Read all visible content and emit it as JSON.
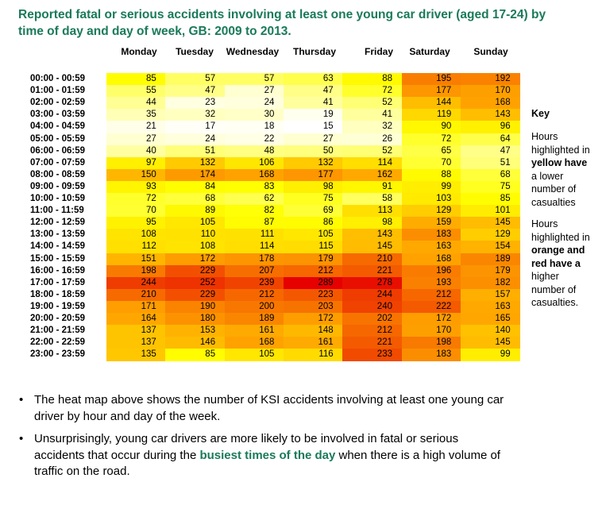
{
  "title": "Reported fatal or serious accidents involving at least one young car driver (aged 17-24) by time of day and day of week, GB: 2009 to 2013.",
  "chart_data": {
    "type": "heatmap",
    "title": "Reported fatal or serious accidents involving at least one young car driver (aged 17-24) by time of day and day of week, GB: 2009 to 2013.",
    "columns": [
      "Monday",
      "Tuesday",
      "Wednesday",
      "Thursday",
      "Friday",
      "Saturday",
      "Sunday"
    ],
    "rows": [
      "00:00 - 00:59",
      "01:00 - 01:59",
      "02:00 - 02:59",
      "03:00 - 03:59",
      "04:00 - 04:59",
      "05:00 - 05:59",
      "06:00 - 06:59",
      "07:00 - 07:59",
      "08:00 - 08:59",
      "09:00 - 09:59",
      "10:00 - 10:59",
      "11:00 - 11:59",
      "12:00 - 12:59",
      "13:00 - 13:59",
      "14:00 - 14:59",
      "15:00 - 15:59",
      "16:00 - 16:59",
      "17:00 - 17:59",
      "18:00 - 18:59",
      "19:00 - 19:59",
      "20:00 - 20:59",
      "21:00 - 21:59",
      "22:00 - 22:59",
      "23:00 - 23:59"
    ],
    "values": [
      [
        85,
        57,
        57,
        63,
        88,
        195,
        192
      ],
      [
        55,
        47,
        27,
        47,
        72,
        177,
        170
      ],
      [
        44,
        23,
        24,
        41,
        52,
        144,
        168
      ],
      [
        35,
        32,
        30,
        19,
        41,
        119,
        143
      ],
      [
        21,
        17,
        18,
        15,
        32,
        90,
        96
      ],
      [
        27,
        24,
        22,
        27,
        26,
        72,
        64
      ],
      [
        40,
        51,
        48,
        50,
        52,
        65,
        47
      ],
      [
        97,
        132,
        106,
        132,
        114,
        70,
        51
      ],
      [
        150,
        174,
        168,
        177,
        162,
        88,
        68
      ],
      [
        93,
        84,
        83,
        98,
        91,
        99,
        75
      ],
      [
        72,
        68,
        62,
        75,
        58,
        103,
        85
      ],
      [
        70,
        89,
        82,
        69,
        113,
        129,
        101
      ],
      [
        95,
        105,
        87,
        86,
        98,
        159,
        145
      ],
      [
        108,
        110,
        111,
        105,
        143,
        183,
        129
      ],
      [
        112,
        108,
        114,
        115,
        145,
        163,
        154
      ],
      [
        151,
        172,
        178,
        179,
        210,
        168,
        189
      ],
      [
        198,
        229,
        207,
        212,
        221,
        196,
        179
      ],
      [
        244,
        252,
        239,
        289,
        278,
        193,
        182
      ],
      [
        210,
        229,
        212,
        223,
        244,
        212,
        157
      ],
      [
        171,
        190,
        200,
        203,
        240,
        222,
        163
      ],
      [
        164,
        180,
        189,
        172,
        202,
        172,
        165
      ],
      [
        137,
        153,
        161,
        148,
        212,
        170,
        140
      ],
      [
        137,
        146,
        168,
        161,
        221,
        198,
        145
      ],
      [
        135,
        85,
        105,
        116,
        233,
        183,
        99
      ]
    ],
    "color_scale": [
      "#ffffff",
      "#ffff00",
      "#ffa500",
      "#e60000"
    ]
  },
  "key": {
    "title": "Key",
    "yellow_lines": [
      "Hours",
      "highlighted in",
      "yellow have",
      "a lower",
      "number of",
      "casualties"
    ],
    "red_lines": [
      "Hours",
      "highlighted in",
      "orange and",
      "red have a",
      "higher",
      "number of",
      "casualties."
    ]
  },
  "bullets": {
    "b1_line1": "The heat map above shows the number of KSI accidents involving at least one young car",
    "b1_line2": "driver by hour and day of the week.",
    "b2_line1": "Unsurprisingly, young car drivers are more likely to be involved in fatal or serious",
    "b2_line2a": "accidents that occur during the ",
    "b2_highlight": "busiest times of the day",
    "b2_line2b": " when there is a high volume of",
    "b2_line3": "traffic on the road."
  }
}
